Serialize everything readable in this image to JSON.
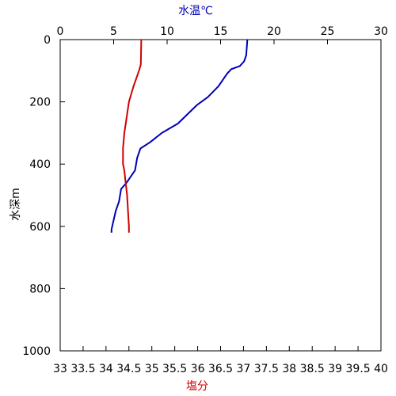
{
  "colors": {
    "temperature": "#0000b4",
    "salinity": "#d00000",
    "frame": "#000000"
  },
  "chart_data": {
    "type": "line",
    "title": "",
    "ylabel": "水深m",
    "ylim": [
      1000,
      0
    ],
    "y_ticks": [
      0,
      200,
      400,
      600,
      800,
      1000
    ],
    "y_tick_labels": [
      "0",
      "200",
      "400",
      "600",
      "800",
      "1000"
    ],
    "top_axis": {
      "label": "水温℃",
      "range": [
        0,
        30
      ],
      "ticks": [
        0,
        5,
        10,
        15,
        20,
        25,
        30
      ],
      "tick_labels": [
        "0",
        "5",
        "10",
        "15",
        "20",
        "25",
        "30"
      ]
    },
    "bottom_axis": {
      "label": "塩分",
      "range": [
        33,
        40
      ],
      "ticks": [
        33,
        33.5,
        34,
        34.5,
        35,
        35.5,
        36,
        36.5,
        37,
        37.5,
        38,
        38.5,
        39,
        39.5,
        40
      ],
      "tick_labels": [
        "33",
        "33.5",
        "34",
        "34.5",
        "35",
        "35.5",
        "36",
        "36.5",
        "37",
        "37.5",
        "38",
        "38.5",
        "39",
        "39.5",
        "40"
      ]
    },
    "grid": false,
    "series": [
      {
        "axis": "top",
        "points": [
          {
            "x": 17.5,
            "y": 0
          },
          {
            "x": 17.4,
            "y": 50
          },
          {
            "x": 17.2,
            "y": 70
          },
          {
            "x": 16.8,
            "y": 85
          },
          {
            "x": 16.0,
            "y": 95
          },
          {
            "x": 15.6,
            "y": 110
          },
          {
            "x": 14.8,
            "y": 150
          },
          {
            "x": 13.8,
            "y": 185
          },
          {
            "x": 12.8,
            "y": 210
          },
          {
            "x": 12.2,
            "y": 230
          },
          {
            "x": 11.0,
            "y": 270
          },
          {
            "x": 9.5,
            "y": 300
          },
          {
            "x": 8.4,
            "y": 330
          },
          {
            "x": 7.5,
            "y": 350
          },
          {
            "x": 7.2,
            "y": 380
          },
          {
            "x": 7.0,
            "y": 420
          },
          {
            "x": 6.6,
            "y": 440
          },
          {
            "x": 6.2,
            "y": 460
          },
          {
            "x": 5.7,
            "y": 480
          },
          {
            "x": 5.5,
            "y": 520
          },
          {
            "x": 5.2,
            "y": 550
          },
          {
            "x": 5.0,
            "y": 580
          },
          {
            "x": 4.8,
            "y": 610
          },
          {
            "x": 4.8,
            "y": 620
          }
        ]
      },
      {
        "axis": "bottom",
        "points": [
          {
            "x": 34.77,
            "y": 0
          },
          {
            "x": 34.76,
            "y": 80
          },
          {
            "x": 34.72,
            "y": 100
          },
          {
            "x": 34.6,
            "y": 150
          },
          {
            "x": 34.5,
            "y": 200
          },
          {
            "x": 34.45,
            "y": 250
          },
          {
            "x": 34.4,
            "y": 300
          },
          {
            "x": 34.37,
            "y": 350
          },
          {
            "x": 34.37,
            "y": 400
          },
          {
            "x": 34.4,
            "y": 420
          },
          {
            "x": 34.42,
            "y": 450
          },
          {
            "x": 34.46,
            "y": 500
          },
          {
            "x": 34.48,
            "y": 550
          },
          {
            "x": 34.5,
            "y": 600
          },
          {
            "x": 34.5,
            "y": 620
          }
        ]
      }
    ]
  }
}
